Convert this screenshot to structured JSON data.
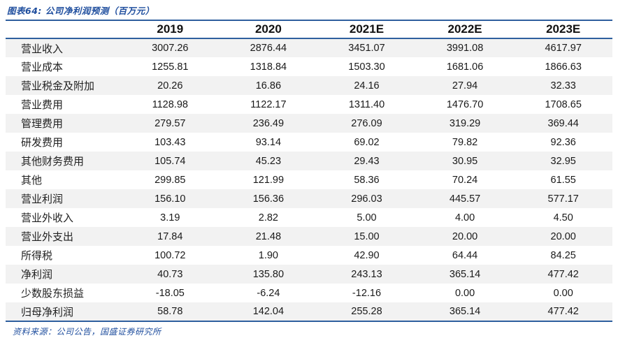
{
  "title": "图表64:  公司净利润预测（百万元）",
  "source": "资料来源：公司公告，国盛证券研究所",
  "colors": {
    "line_blue": "#2e5f9e",
    "text_blue": "#1f4e9e",
    "stripe_gray": "#f2f2f2"
  },
  "table": {
    "columns": [
      "",
      "2019",
      "2020",
      "2021E",
      "2022E",
      "2023E"
    ],
    "rows": [
      {
        "label": "营业收入",
        "values": [
          "3007.26",
          "2876.44",
          "3451.07",
          "3991.08",
          "4617.97"
        ]
      },
      {
        "label": "营业成本",
        "values": [
          "1255.81",
          "1318.84",
          "1503.30",
          "1681.06",
          "1866.63"
        ]
      },
      {
        "label": "营业税金及附加",
        "values": [
          "20.26",
          "16.86",
          "24.16",
          "27.94",
          "32.33"
        ]
      },
      {
        "label": "营业费用",
        "values": [
          "1128.98",
          "1122.17",
          "1311.40",
          "1476.70",
          "1708.65"
        ]
      },
      {
        "label": "管理费用",
        "values": [
          "279.57",
          "236.49",
          "276.09",
          "319.29",
          "369.44"
        ]
      },
      {
        "label": "研发费用",
        "values": [
          "103.43",
          "93.14",
          "69.02",
          "79.82",
          "92.36"
        ]
      },
      {
        "label": "其他财务费用",
        "values": [
          "105.74",
          "45.23",
          "29.43",
          "30.95",
          "32.95"
        ]
      },
      {
        "label": "其他",
        "values": [
          "299.85",
          "121.99",
          "58.36",
          "70.24",
          "61.55"
        ]
      },
      {
        "label": "营业利润",
        "values": [
          "156.10",
          "156.36",
          "296.03",
          "445.57",
          "577.17"
        ]
      },
      {
        "label": "营业外收入",
        "values": [
          "3.19",
          "2.82",
          "5.00",
          "4.00",
          "4.50"
        ]
      },
      {
        "label": "营业外支出",
        "values": [
          "17.84",
          "21.48",
          "15.00",
          "20.00",
          "20.00"
        ]
      },
      {
        "label": "所得税",
        "values": [
          "100.72",
          "1.90",
          "42.90",
          "64.44",
          "84.25"
        ]
      },
      {
        "label": "净利润",
        "values": [
          "40.73",
          "135.80",
          "243.13",
          "365.14",
          "477.42"
        ]
      },
      {
        "label": "少数股东损益",
        "values": [
          "-18.05",
          "-6.24",
          "-12.16",
          "0.00",
          "0.00"
        ]
      },
      {
        "label": "归母净利润",
        "values": [
          "58.78",
          "142.04",
          "255.28",
          "365.14",
          "477.42"
        ]
      }
    ]
  }
}
